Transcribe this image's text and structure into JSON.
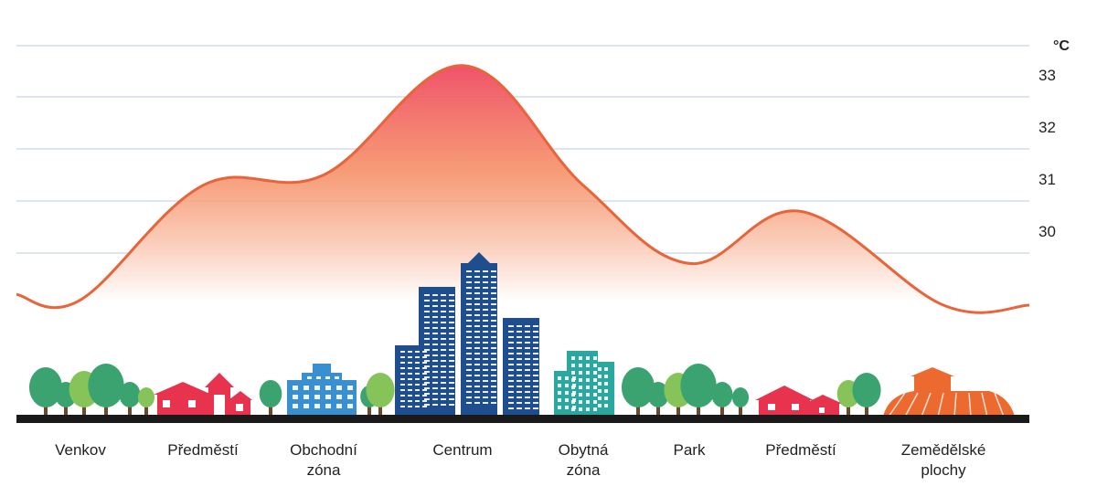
{
  "chart_data": {
    "type": "area",
    "unit": "°C",
    "yticks": [
      30,
      31,
      32,
      33
    ],
    "ylim": [
      28.5,
      33.6
    ],
    "grid": true,
    "categories": [
      {
        "line1": "Venkov",
        "line2": ""
      },
      {
        "line1": "Předměstí",
        "line2": ""
      },
      {
        "line1": "Obchodní",
        "line2": "zóna"
      },
      {
        "line1": "Centrum",
        "line2": ""
      },
      {
        "line1": "Obytná",
        "line2": "zóna"
      },
      {
        "line1": "Park",
        "line2": ""
      },
      {
        "line1": "Předměstí",
        "line2": ""
      },
      {
        "line1": "Zemědělské",
        "line2": "plochy"
      }
    ],
    "values": [
      29.1,
      31.3,
      31.5,
      33.6,
      31.3,
      29.8,
      30.8,
      29.0
    ],
    "colors": {
      "line": "#e8643a",
      "fill_top": "#ee3f68",
      "fill_mid": "#f58a5e",
      "grid": "#b9cbe0",
      "ground": "#1a1a1a",
      "tree_dark": "#3aa36f",
      "tree_light": "#86c45a",
      "house": "#e8334f",
      "office": "#3a8fd0",
      "skyscraper": "#1f4e8f",
      "residential": "#2aa8a0",
      "farm": "#ec6a2f"
    }
  }
}
